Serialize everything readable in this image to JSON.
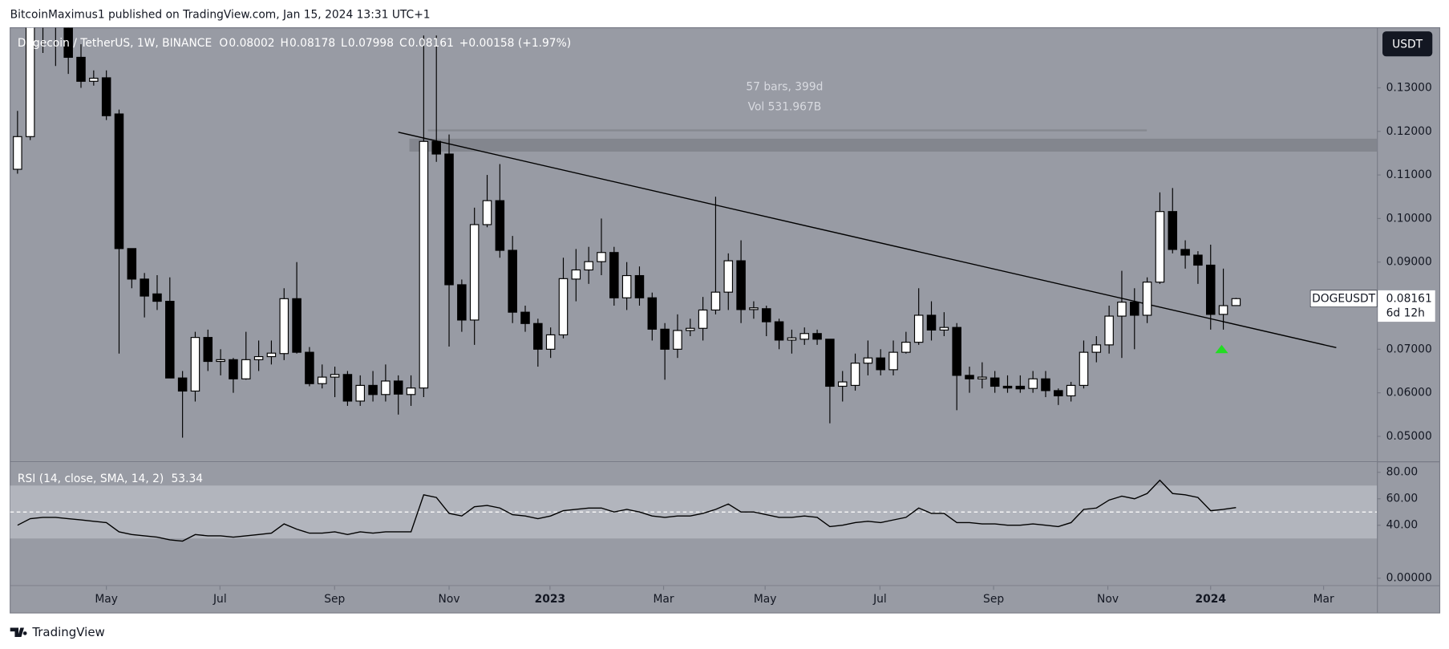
{
  "header": "BitcoinMaximus1 published on TradingView.com, Jan 15, 2024 13:31 UTC+1",
  "footer": "TradingView",
  "chart_data": [
    {
      "type": "candlestick",
      "title": "Dogecoin / TetherUS, 1W, BINANCE",
      "ohlc_labels": [
        "O",
        "H",
        "L",
        "C"
      ],
      "change": "+0.00158 (+1.97%)",
      "currency": "USDT",
      "symbol": "DOGEUSDT",
      "countdown": "6d 12h",
      "measure": [
        "57 bars, 399d",
        "Vol 531.967B"
      ],
      "up_color": "#ffffff",
      "down_color": "#000000",
      "categories": [
        null,
        null,
        null,
        null,
        null,
        null,
        null,
        null,
        null,
        null,
        null,
        null,
        null,
        null,
        null,
        null,
        null,
        null,
        null,
        null,
        null,
        null,
        null,
        null,
        null,
        null,
        null,
        null,
        null,
        null,
        null,
        null,
        null,
        null,
        null,
        null,
        null,
        null,
        null,
        null,
        null,
        null,
        null,
        null,
        null,
        null,
        null,
        null,
        null,
        null,
        null,
        null,
        null,
        null,
        null,
        null,
        null,
        null,
        null,
        null,
        null,
        null,
        null,
        null,
        null,
        null,
        null,
        null,
        null,
        null,
        null,
        null,
        null,
        null,
        null,
        null,
        null,
        null,
        null,
        null,
        null,
        null,
        null,
        null,
        null,
        null,
        null,
        null,
        null,
        null,
        null,
        null,
        null,
        null,
        null,
        null,
        null
      ],
      "open": [
        0.1113,
        0.1188,
        0.15,
        0.146,
        0.144,
        0.137,
        0.1315,
        0.1323,
        0.124,
        0.0931,
        0.0861,
        0.0827,
        0.081,
        0.0634,
        0.0604,
        0.0727,
        0.0672,
        0.0676,
        0.0632,
        0.0676,
        0.0683,
        0.069,
        0.0816,
        0.0693,
        0.0621,
        0.0636,
        0.0642,
        0.0581,
        0.0617,
        0.0596,
        0.0627,
        0.0596,
        0.0611,
        0.1177,
        0.1148,
        0.0848,
        0.0767,
        0.0986,
        0.1041,
        0.0927,
        0.0785,
        0.0759,
        0.07,
        0.0733,
        0.0861,
        0.0882,
        0.0901,
        0.0922,
        0.0818,
        0.0869,
        0.0818,
        0.0746,
        0.07,
        0.0743,
        0.0748,
        0.079,
        0.0831,
        0.0903,
        0.0791,
        0.0793,
        0.0763,
        0.0721,
        0.0723,
        0.0736,
        0.0723,
        0.0615,
        0.0617,
        0.0668,
        0.068,
        0.0653,
        0.0693,
        0.0716,
        0.0778,
        0.0744,
        0.075,
        0.064,
        0.0632,
        0.0634,
        0.0615,
        0.0615,
        0.061,
        0.0632,
        0.0605,
        0.0593,
        0.0617,
        0.0693,
        0.071,
        0.0776,
        0.0808,
        0.0778,
        0.0854,
        0.1016,
        0.0929,
        0.0916,
        0.0893,
        0.078,
        0.08002
      ],
      "high": [
        0.1247,
        0.155,
        0.158,
        0.15,
        0.146,
        0.14,
        0.134,
        0.134,
        0.125,
        0.0931,
        0.0875,
        0.087,
        0.0865,
        0.065,
        0.074,
        0.0745,
        0.07,
        0.068,
        0.074,
        0.072,
        0.072,
        0.084,
        0.09,
        0.0705,
        0.0665,
        0.066,
        0.065,
        0.064,
        0.065,
        0.0665,
        0.064,
        0.064,
        0.142,
        0.142,
        0.1193,
        0.086,
        0.1025,
        0.11,
        0.1125,
        0.096,
        0.08,
        0.077,
        0.075,
        0.091,
        0.093,
        0.0935,
        0.1,
        0.0935,
        0.09,
        0.089,
        0.083,
        0.076,
        0.078,
        0.077,
        0.082,
        0.105,
        0.092,
        0.095,
        0.081,
        0.08,
        0.077,
        0.0745,
        0.075,
        0.0745,
        0.0723,
        0.065,
        0.069,
        0.072,
        0.07,
        0.072,
        0.074,
        0.084,
        0.081,
        0.0785,
        0.076,
        0.066,
        0.067,
        0.065,
        0.064,
        0.064,
        0.065,
        0.065,
        0.061,
        0.0625,
        0.072,
        0.073,
        0.08,
        0.088,
        0.084,
        0.0865,
        0.106,
        0.107,
        0.095,
        0.0925,
        0.094,
        0.0885,
        0.08178
      ],
      "low": [
        0.1103,
        0.118,
        0.138,
        0.135,
        0.1332,
        0.13,
        0.1305,
        0.1226,
        0.069,
        0.084,
        0.0773,
        0.079,
        0.0634,
        0.0497,
        0.058,
        0.065,
        0.064,
        0.06,
        0.063,
        0.065,
        0.0665,
        0.0675,
        0.069,
        0.0615,
        0.061,
        0.059,
        0.057,
        0.057,
        0.058,
        0.058,
        0.055,
        0.057,
        0.059,
        0.113,
        0.0706,
        0.074,
        0.071,
        0.098,
        0.091,
        0.076,
        0.074,
        0.066,
        0.068,
        0.0725,
        0.081,
        0.085,
        0.087,
        0.08,
        0.079,
        0.08,
        0.072,
        0.063,
        0.068,
        0.073,
        0.072,
        0.078,
        0.079,
        0.076,
        0.077,
        0.073,
        0.07,
        0.069,
        0.071,
        0.071,
        0.053,
        0.058,
        0.0605,
        0.064,
        0.064,
        0.064,
        0.069,
        0.071,
        0.072,
        0.073,
        0.056,
        0.06,
        0.061,
        0.06,
        0.06,
        0.06,
        0.06,
        0.059,
        0.0572,
        0.058,
        0.061,
        0.067,
        0.069,
        0.068,
        0.07,
        0.076,
        0.085,
        0.092,
        0.0885,
        0.085,
        0.0745,
        0.0745,
        0.07998
      ],
      "close": [
        0.1188,
        0.15,
        0.146,
        0.144,
        0.137,
        0.1315,
        0.1322,
        0.1236,
        0.0931,
        0.0861,
        0.0822,
        0.081,
        0.0634,
        0.0604,
        0.0727,
        0.0672,
        0.0676,
        0.0632,
        0.0676,
        0.0683,
        0.0691,
        0.0816,
        0.0693,
        0.0621,
        0.0636,
        0.0642,
        0.0581,
        0.0617,
        0.0596,
        0.0627,
        0.0597,
        0.0611,
        0.1177,
        0.1148,
        0.0848,
        0.0767,
        0.0986,
        0.1041,
        0.0927,
        0.0785,
        0.0759,
        0.07,
        0.0733,
        0.0862,
        0.0882,
        0.0901,
        0.0922,
        0.0818,
        0.0869,
        0.0818,
        0.0746,
        0.07,
        0.0743,
        0.0748,
        0.079,
        0.0831,
        0.0903,
        0.0791,
        0.0795,
        0.0763,
        0.0721,
        0.0726,
        0.0736,
        0.0723,
        0.0615,
        0.0625,
        0.0668,
        0.068,
        0.0653,
        0.0693,
        0.0716,
        0.0778,
        0.0744,
        0.075,
        0.064,
        0.0632,
        0.0636,
        0.0615,
        0.0611,
        0.0609,
        0.0632,
        0.0605,
        0.0593,
        0.0617,
        0.0693,
        0.071,
        0.0776,
        0.0808,
        0.0778,
        0.0854,
        0.1016,
        0.0929,
        0.0916,
        0.0893,
        0.078,
        0.08,
        0.08161
      ],
      "ylim": [
        0.04427,
        0.14379
      ],
      "yticks": [
        {
          "value": 0.05,
          "label": "0.05000"
        },
        {
          "value": 0.06,
          "label": "0.06000"
        },
        {
          "value": 0.07,
          "label": "0.07000"
        },
        {
          "value": 0.08,
          "label": "0.08000"
        },
        {
          "value": 0.09,
          "label": "0.09000"
        },
        {
          "value": 0.1,
          "label": "0.10000"
        },
        {
          "value": 0.11,
          "label": "0.11000"
        },
        {
          "value": 0.12,
          "label": "0.12000"
        },
        {
          "value": 0.13,
          "label": "0.13000"
        }
      ],
      "xlim": [
        -0.58,
        107.1
      ],
      "xticks": [
        {
          "value": 7.0,
          "label": "May"
        },
        {
          "value": 15.95,
          "label": "Jul"
        },
        {
          "value": 24.98,
          "label": "Sep"
        },
        {
          "value": 34.0,
          "label": "Nov"
        },
        {
          "value": 41.95,
          "label": "2023"
        },
        {
          "value": 50.9,
          "label": "Mar"
        },
        {
          "value": 58.9,
          "label": "May"
        },
        {
          "value": 67.95,
          "label": "Jul"
        },
        {
          "value": 76.9,
          "label": "Sep"
        },
        {
          "value": 85.9,
          "label": "Nov"
        },
        {
          "value": 94.0,
          "label": "2024"
        },
        {
          "value": 102.9,
          "label": "Mar"
        }
      ],
      "grid": false
    },
    {
      "type": "line",
      "title": "RSI (14, close, SMA, 14, 2)",
      "color": "#000000",
      "categories": [
        null,
        null,
        null,
        null,
        null,
        null,
        null,
        null,
        null,
        null,
        null,
        null,
        null,
        null,
        null,
        null,
        null,
        null,
        null,
        null,
        null,
        null,
        null,
        null,
        null,
        null,
        null,
        null,
        null,
        null,
        null,
        null,
        null,
        null,
        null,
        null,
        null,
        null,
        null,
        null,
        null,
        null,
        null,
        null,
        null,
        null,
        null,
        null,
        null,
        null,
        null,
        null,
        null,
        null,
        null,
        null,
        null,
        null,
        null,
        null,
        null,
        null,
        null,
        null,
        null,
        null,
        null,
        null,
        null,
        null,
        null,
        null,
        null,
        null,
        null,
        null,
        null,
        null,
        null,
        null,
        null,
        null,
        null,
        null,
        null,
        null,
        null,
        null,
        null,
        null,
        null,
        null,
        null,
        null,
        null,
        null,
        null
      ],
      "values": [
        40,
        45,
        46,
        46,
        45,
        44,
        43,
        42,
        35,
        33,
        32,
        31,
        29,
        28,
        33,
        32,
        32,
        31,
        32,
        33,
        34,
        41,
        37,
        34,
        34,
        35,
        33,
        35,
        34,
        35,
        35,
        35,
        63,
        61,
        49,
        47,
        54,
        55,
        53,
        48,
        47,
        45,
        47,
        51,
        52,
        53,
        53,
        50,
        52,
        50,
        47,
        46,
        47,
        47,
        49,
        52,
        56,
        50,
        50,
        48,
        46,
        46,
        47,
        46,
        39,
        40,
        42,
        43,
        42,
        44,
        46,
        53,
        49,
        49,
        42,
        42,
        41,
        41,
        40,
        40,
        41,
        40,
        39,
        42,
        52,
        53,
        59,
        62,
        60,
        64,
        74,
        64,
        63,
        61,
        51,
        52,
        53.34
      ],
      "ylim": [
        -5.3,
        87.6
      ],
      "yticks": [
        {
          "value": 0,
          "label": "0.00000"
        },
        {
          "value": 40,
          "label": "40.00"
        },
        {
          "value": 60,
          "label": "60.00"
        },
        {
          "value": 80,
          "label": "80.00"
        }
      ],
      "band": [
        30,
        70
      ],
      "midline": 50
    }
  ]
}
